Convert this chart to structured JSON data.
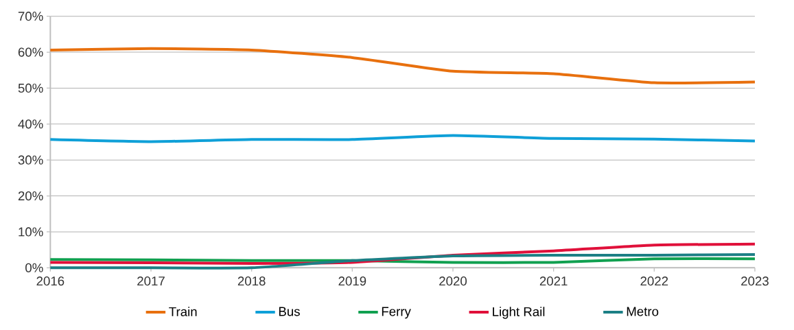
{
  "chart_data": {
    "type": "line",
    "x": [
      2016,
      2017,
      2018,
      2019,
      2020,
      2021,
      2022,
      2023
    ],
    "xlim": [
      2016,
      2023
    ],
    "xticks": [
      2016,
      2017,
      2018,
      2019,
      2020,
      2021,
      2022,
      2023
    ],
    "ylim": [
      0,
      70
    ],
    "yticks": [
      {
        "value": 0,
        "label": "0%"
      },
      {
        "value": 10,
        "label": "10%"
      },
      {
        "value": 20,
        "label": "20%"
      },
      {
        "value": 30,
        "label": "30%"
      },
      {
        "value": 40,
        "label": "40%"
      },
      {
        "value": 50,
        "label": "50%"
      },
      {
        "value": 60,
        "label": "60%"
      },
      {
        "value": 70,
        "label": "70%"
      }
    ],
    "grid": "y",
    "legend": "bottom",
    "marker": "none",
    "line_style": "solid",
    "series": [
      {
        "name": "Train",
        "color": "#e8700e",
        "values": [
          60.6,
          61,
          60.6,
          58.5,
          54.7,
          54,
          51.5,
          51.7
        ]
      },
      {
        "name": "Bus",
        "color": "#0fa0d8",
        "values": [
          35.7,
          35.1,
          35.7,
          35.7,
          36.8,
          36,
          35.8,
          35.3
        ]
      },
      {
        "name": "Ferry",
        "color": "#10a050",
        "values": [
          2.3,
          2.2,
          2.0,
          2.0,
          1.5,
          1.5,
          2.5,
          2.5
        ]
      },
      {
        "name": "Light Rail",
        "color": "#e0103a",
        "values": [
          1.5,
          1.4,
          1.2,
          1.5,
          3.5,
          4.7,
          6.3,
          6.6
        ]
      },
      {
        "name": "Metro",
        "color": "#1c7f85",
        "values": [
          0,
          0,
          0,
          2.0,
          3.3,
          3.5,
          3.5,
          3.7
        ]
      }
    ]
  }
}
